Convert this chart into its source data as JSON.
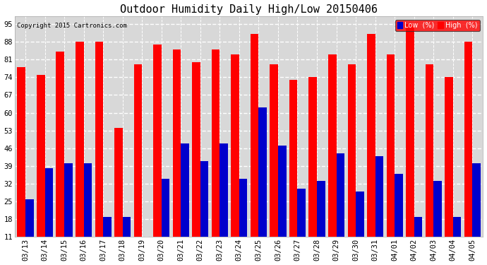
{
  "title": "Outdoor Humidity Daily High/Low 20150406",
  "copyright": "Copyright 2015 Cartronics.com",
  "dates": [
    "03/13",
    "03/14",
    "03/15",
    "03/16",
    "03/17",
    "03/18",
    "03/19",
    "03/20",
    "03/21",
    "03/22",
    "03/23",
    "03/24",
    "03/25",
    "03/26",
    "03/27",
    "03/28",
    "03/29",
    "03/30",
    "03/31",
    "04/01",
    "04/02",
    "04/03",
    "04/04",
    "04/05"
  ],
  "high": [
    78,
    75,
    84,
    88,
    88,
    54,
    79,
    87,
    85,
    80,
    85,
    83,
    91,
    79,
    73,
    74,
    83,
    79,
    91,
    83,
    95,
    79,
    74,
    88
  ],
  "low": [
    26,
    38,
    40,
    40,
    19,
    19,
    11,
    34,
    48,
    41,
    48,
    34,
    62,
    47,
    30,
    33,
    44,
    29,
    43,
    36,
    19,
    33,
    19,
    40
  ],
  "bar_width": 0.42,
  "high_color": "#ff0000",
  "low_color": "#0000cc",
  "bg_color": "#ffffff",
  "plot_bg_color": "#d8d8d8",
  "grid_color": "#ffffff",
  "ylim_min": 11,
  "ylim_max": 98,
  "yticks": [
    11,
    18,
    25,
    32,
    39,
    46,
    53,
    60,
    67,
    74,
    81,
    88,
    95
  ],
  "title_fontsize": 11,
  "tick_fontsize": 7.5,
  "legend_low_label": "Low  (%)",
  "legend_high_label": "High  (%)"
}
